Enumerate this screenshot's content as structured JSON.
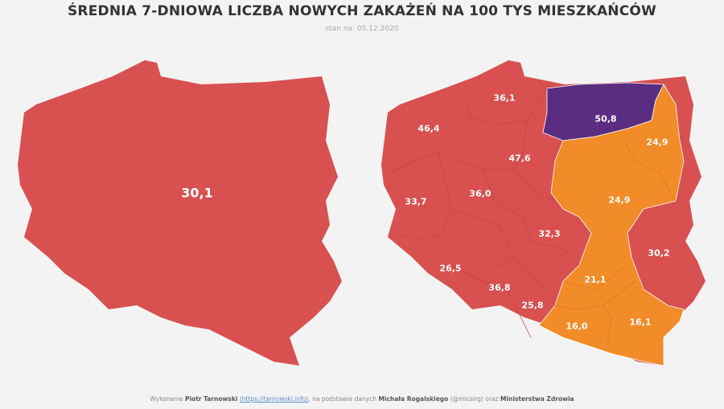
{
  "title": "ŚREDNIA 7-DNIOWA LICZBA NOWYCH ZAKAŻEŃ NA 100 TYS MIESZKAŃCÓW",
  "subtitle": "stan na: 05.12.2020",
  "colors": {
    "red": "#d95050",
    "orange": "#f28c28",
    "purple": "#5a2d82"
  },
  "national": {
    "value": "30,1"
  },
  "regions": [
    {
      "value": "36,1",
      "color": "red"
    },
    {
      "value": "50,8",
      "color": "purple"
    },
    {
      "value": "46,4",
      "color": "red"
    },
    {
      "value": "47,6",
      "color": "red"
    },
    {
      "value": "24,9",
      "color": "orange"
    },
    {
      "value": "33,7",
      "color": "red"
    },
    {
      "value": "36,0",
      "color": "red"
    },
    {
      "value": "24,9",
      "color": "orange"
    },
    {
      "value": "32,3",
      "color": "red"
    },
    {
      "value": "30,2",
      "color": "red"
    },
    {
      "value": "26,5",
      "color": "red"
    },
    {
      "value": "21,1",
      "color": "orange"
    },
    {
      "value": "36,8",
      "color": "red"
    },
    {
      "value": "25,8",
      "color": "red"
    },
    {
      "value": "16,0",
      "color": "orange"
    },
    {
      "value": "16,1",
      "color": "orange"
    }
  ],
  "footer": {
    "prefix": "Wykonanie",
    "author": "Piotr Tarnowski",
    "link": "(https://tarnowski.info)",
    "middle": ", na podstawie danych",
    "source1": "Michała Rogalskiego",
    "handle": "(@micalrg) oraz",
    "source2": "Ministerstwa Zdrowia"
  }
}
